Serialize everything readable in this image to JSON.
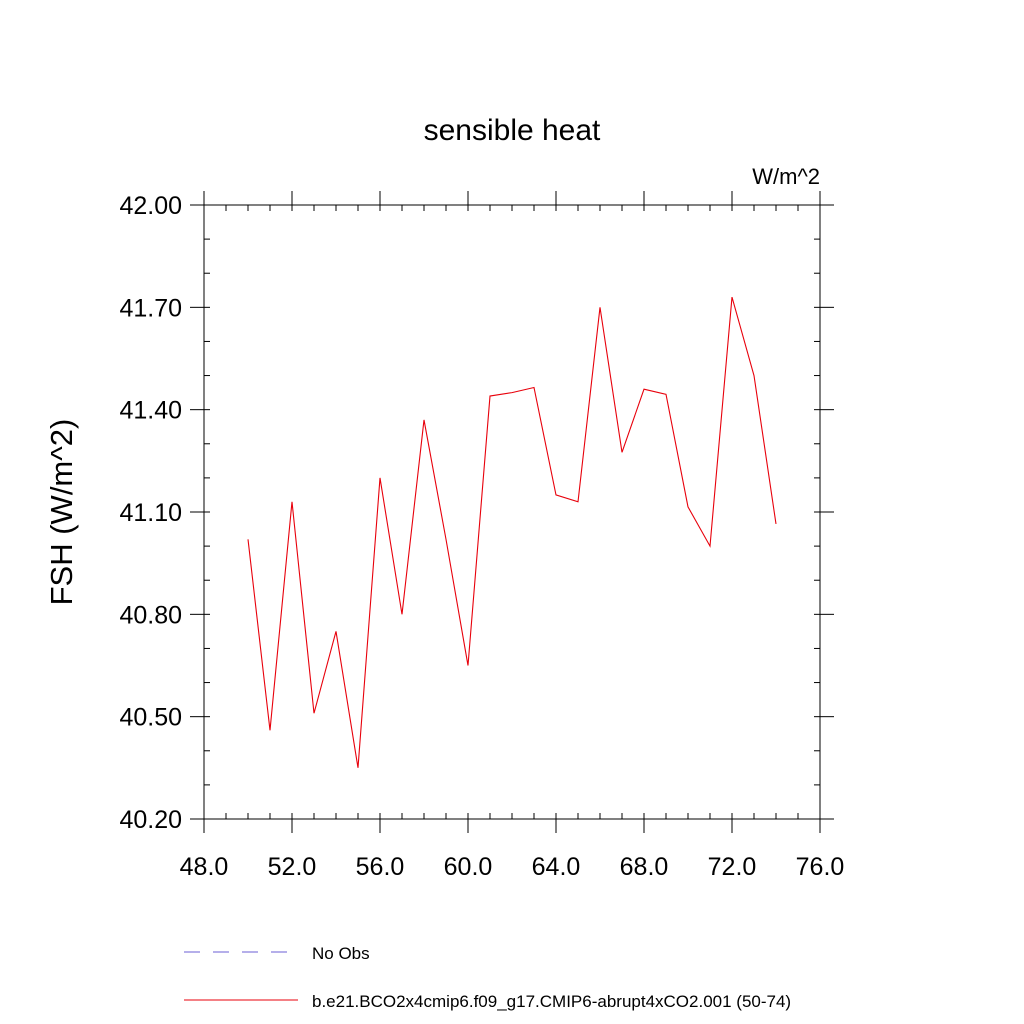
{
  "chart_data": {
    "type": "line",
    "title": "sensible heat",
    "units_label": "W/m^2",
    "xlabel": "",
    "ylabel": "FSH  (W/m^2)",
    "xlim": [
      48,
      76
    ],
    "ylim": [
      40.2,
      42.0
    ],
    "x_ticks": [
      48,
      52,
      56,
      60,
      64,
      68,
      72,
      76
    ],
    "x_tick_labels": [
      "48.0",
      "52.0",
      "56.0",
      "60.0",
      "64.0",
      "68.0",
      "72.0",
      "76.0"
    ],
    "x_minor_step": 1,
    "y_ticks": [
      40.2,
      40.5,
      40.8,
      41.1,
      41.4,
      41.7,
      42.0
    ],
    "y_tick_labels": [
      "40.20",
      "40.50",
      "40.80",
      "41.10",
      "41.40",
      "41.70",
      "42.00"
    ],
    "y_minor_step": 0.1,
    "grid": false,
    "legend_position": "bottom",
    "series": [
      {
        "name": "No Obs",
        "color": "#6b5fd6",
        "style": "dashed",
        "x": [],
        "values": []
      },
      {
        "name": "b.e21.BCO2x4cmip6.f09_g17.CMIP6-abrupt4xCO2.001 (50-74)",
        "color": "#e8000b",
        "style": "solid",
        "x": [
          50,
          51,
          52,
          53,
          54,
          55,
          56,
          57,
          58,
          59,
          60,
          61,
          62,
          63,
          64,
          65,
          66,
          67,
          68,
          69,
          70,
          71,
          72,
          73,
          74
        ],
        "values": [
          41.02,
          40.46,
          41.13,
          40.51,
          40.75,
          40.35,
          41.2,
          40.8,
          41.37,
          41.02,
          40.65,
          41.44,
          41.45,
          41.465,
          41.15,
          41.13,
          41.7,
          41.275,
          41.46,
          41.445,
          41.115,
          41.0,
          41.73,
          41.5,
          41.065
        ]
      }
    ]
  }
}
